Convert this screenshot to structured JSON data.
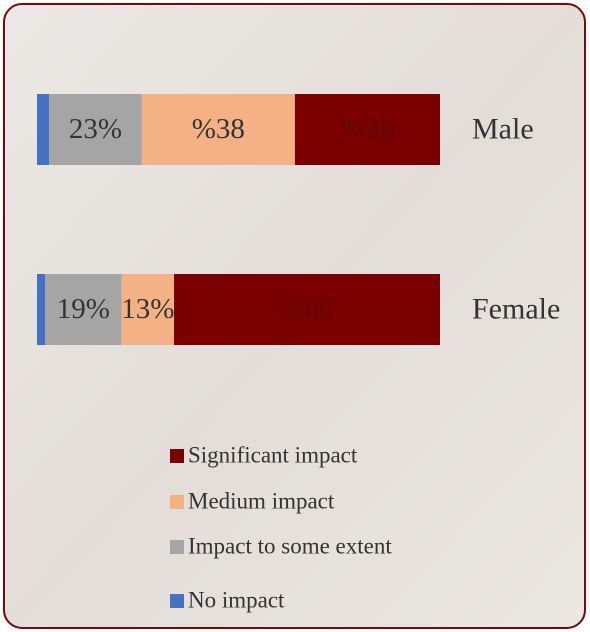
{
  "chart_data": {
    "type": "stacked-bar-horizontal",
    "categories": [
      "Male",
      "Female"
    ],
    "series": [
      {
        "name": "No impact",
        "color": "#4472c4",
        "values": [
          3,
          2
        ]
      },
      {
        "name": "Impact to some extent",
        "color": "#a5a5a5",
        "values": [
          23,
          19
        ],
        "value_labels": [
          "23%",
          "19%"
        ],
        "label_color": "#333333"
      },
      {
        "name": "Medium impact",
        "color": "#f4b183",
        "values": [
          38,
          13
        ],
        "value_labels": [
          "%38",
          "13%"
        ],
        "label_color": "#333333"
      },
      {
        "name": "Significant impact",
        "color": "#7b0000",
        "values": [
          36,
          66
        ],
        "value_labels": [
          "%36",
          "%66"
        ],
        "label_color": "#5c0a0a"
      }
    ]
  }
}
